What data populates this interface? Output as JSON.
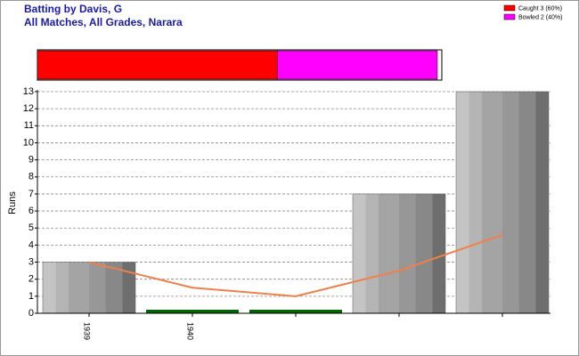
{
  "chart_data": [
    {
      "type": "bar",
      "orientation": "horizontal",
      "stacked": true,
      "series": [
        {
          "name": "Caught 3 (60%)",
          "color": "#ff0000",
          "values": [
            3
          ]
        },
        {
          "name": "Bowled 2 (40%)",
          "color": "#ff00ff",
          "values": [
            2
          ]
        }
      ]
    },
    {
      "type": "bar",
      "title": "Batting by Davis, G",
      "subtitle": "All Matches, All Grades, Narara",
      "ylabel": "Runs",
      "categories": [
        "1939",
        "1940",
        null,
        null,
        null
      ],
      "values": [
        3,
        0,
        0,
        7,
        13
      ],
      "color": "#9a9a9a",
      "zero_color": "#006400",
      "line": {
        "values": [
          3,
          1.5,
          1,
          2.5,
          4.6
        ],
        "color": "#f0804a"
      },
      "ylim": [
        0,
        13
      ],
      "yticks": [
        0,
        1,
        2,
        3,
        4,
        5,
        6,
        7,
        8,
        9,
        10,
        11,
        12,
        13
      ],
      "grid": true
    }
  ]
}
